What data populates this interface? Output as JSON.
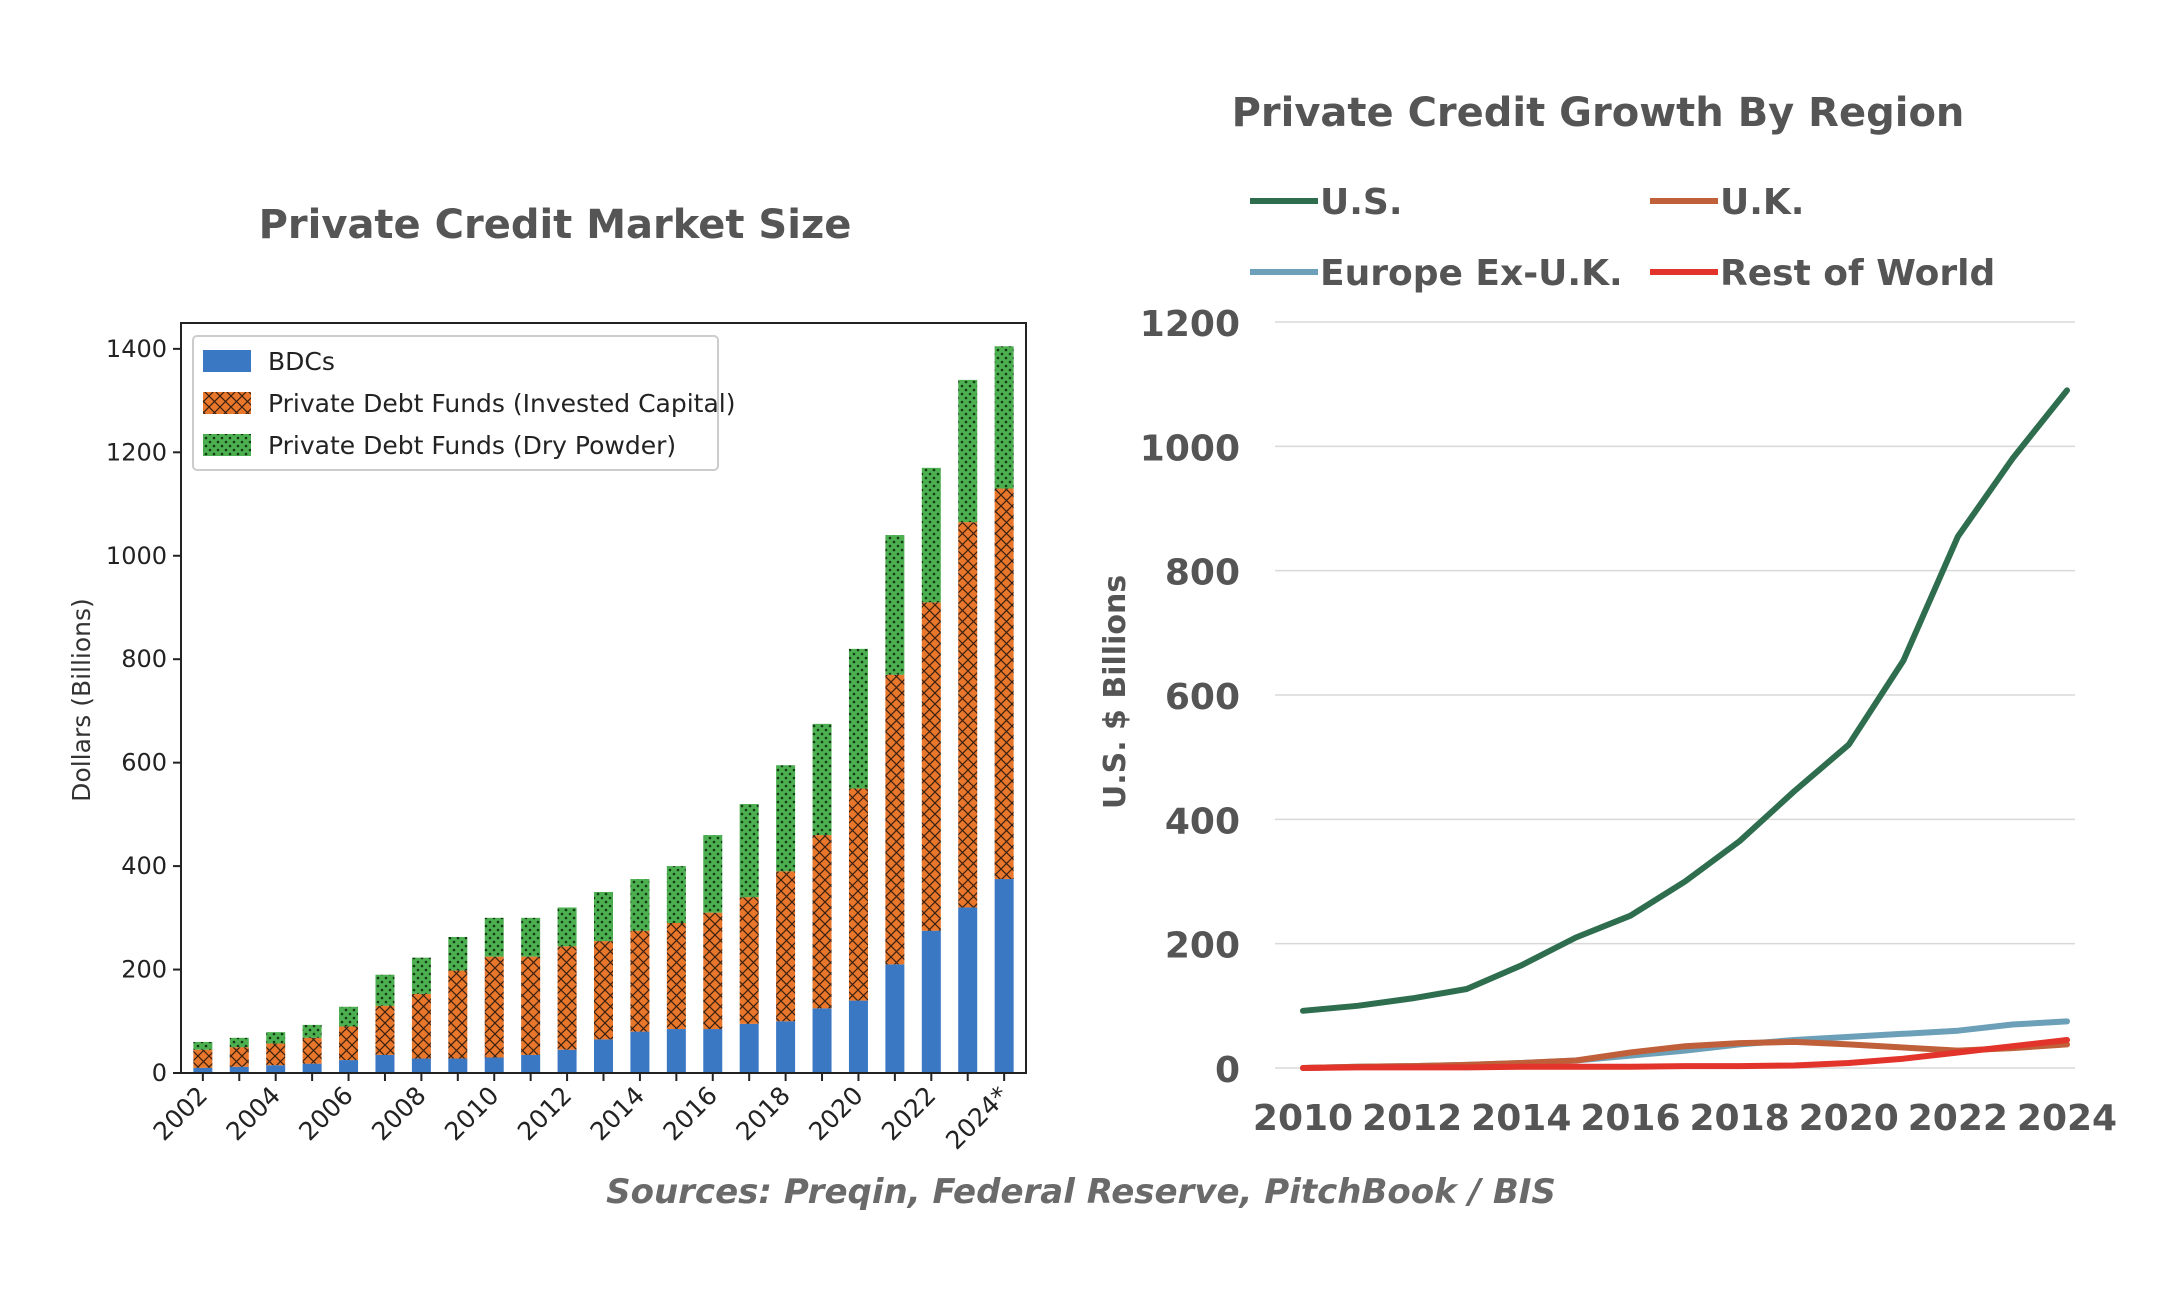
{
  "source_note": "Sources: Preqin, Federal Reserve, PitchBook / BIS",
  "chart_data": [
    {
      "type": "bar",
      "stacked": true,
      "title": "Private Credit Market Size",
      "xlabel": "",
      "ylabel": "Dollars (Billions)",
      "ylim": [
        0,
        1450
      ],
      "yticks": [
        0,
        200,
        400,
        600,
        800,
        1000,
        1200,
        1400
      ],
      "grid": false,
      "legend_position": "top-left",
      "categories": [
        "2002",
        "2003",
        "2004",
        "2005",
        "2006",
        "2007",
        "2008",
        "2009",
        "2010",
        "2011",
        "2012",
        "2013",
        "2014",
        "2015",
        "2016",
        "2017",
        "2018",
        "2019",
        "2020",
        "2021",
        "2022",
        "2023",
        "2024*"
      ],
      "tick_labels": [
        "2002",
        "2004",
        "2006",
        "2008",
        "2010",
        "2012",
        "2014",
        "2016",
        "2018",
        "2020",
        "2022",
        "2024*"
      ],
      "series": [
        {
          "name": "BDCs",
          "color": "#3a78c3",
          "pattern": "solid",
          "values": [
            10,
            12,
            15,
            18,
            25,
            35,
            28,
            28,
            30,
            35,
            45,
            65,
            80,
            85,
            85,
            95,
            100,
            125,
            140,
            210,
            275,
            320,
            375
          ]
        },
        {
          "name": "Private Debt Funds (Invested Capital)",
          "color": "#e8762b",
          "pattern": "crosshatch",
          "values": [
            35,
            38,
            42,
            50,
            65,
            95,
            125,
            170,
            195,
            190,
            200,
            190,
            195,
            205,
            225,
            245,
            290,
            335,
            410,
            560,
            635,
            745,
            755
          ]
        },
        {
          "name": "Private Debt Funds (Dry Powder)",
          "color": "#4caf50",
          "pattern": "dots",
          "values": [
            15,
            18,
            22,
            25,
            38,
            60,
            70,
            65,
            75,
            75,
            75,
            95,
            100,
            110,
            150,
            180,
            205,
            215,
            270,
            270,
            260,
            275,
            275
          ]
        }
      ]
    },
    {
      "type": "line",
      "title": "Private Credit Growth By Region",
      "xlabel": "",
      "ylabel": "U.S. $ Billions",
      "ylim": [
        0,
        1200
      ],
      "xlim": [
        2010,
        2024
      ],
      "yticks": [
        0,
        200,
        400,
        600,
        800,
        1000,
        1200
      ],
      "xticks": [
        2010,
        2012,
        2014,
        2016,
        2018,
        2020,
        2022,
        2024
      ],
      "grid": true,
      "legend_position": "top",
      "x": [
        2010,
        2011,
        2012,
        2013,
        2014,
        2015,
        2016,
        2017,
        2018,
        2019,
        2020,
        2021,
        2022,
        2023,
        2024
      ],
      "series": [
        {
          "name": "U.S.",
          "color": "#2e6e4e",
          "values": [
            92,
            100,
            112,
            127,
            165,
            210,
            245,
            300,
            365,
            445,
            520,
            655,
            855,
            980,
            1090
          ]
        },
        {
          "name": "U.K.",
          "color": "#c0603a",
          "values": [
            0,
            2,
            3,
            5,
            8,
            12,
            25,
            35,
            40,
            42,
            38,
            33,
            28,
            32,
            38
          ]
        },
        {
          "name": "Europe Ex-U.K.",
          "color": "#6ba0b8",
          "values": [
            0,
            2,
            3,
            5,
            8,
            12,
            20,
            28,
            38,
            45,
            50,
            55,
            60,
            70,
            75
          ]
        },
        {
          "name": "Rest of World",
          "color": "#e2342a",
          "values": [
            0,
            1,
            1,
            1,
            2,
            2,
            2,
            3,
            3,
            4,
            8,
            15,
            25,
            35,
            45
          ]
        }
      ]
    }
  ]
}
